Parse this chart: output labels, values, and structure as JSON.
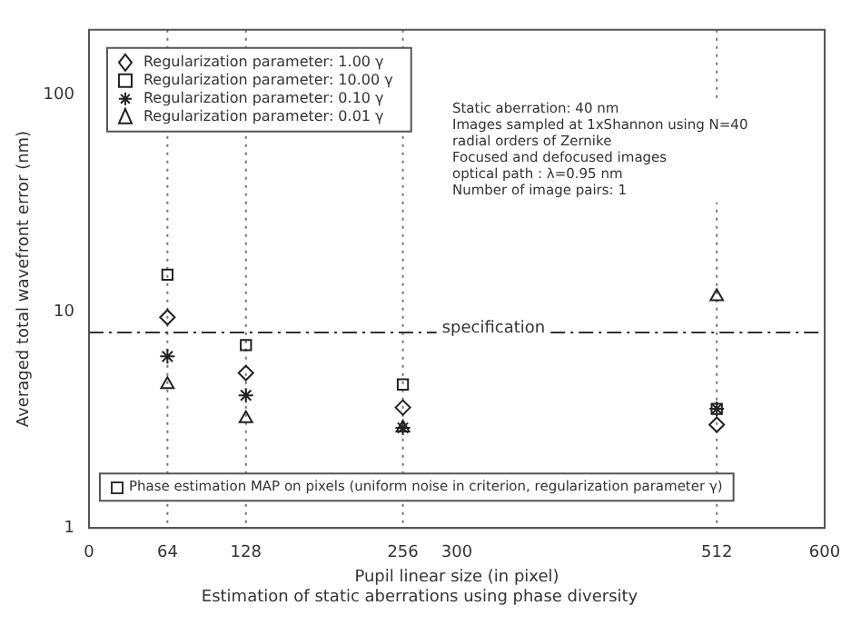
{
  "chart_data": {
    "type": "scatter",
    "title": "Estimation of static aberrations using phase diversity",
    "xlabel": "Pupil linear size (in pixel)",
    "ylabel": "Averaged total wavefront error (nm)",
    "x": [
      64,
      128,
      256,
      512
    ],
    "series": [
      {
        "name": "Regularization parameter: 1.00 γ",
        "color": "#222222",
        "marker": "diamond",
        "values": [
          9.4,
          5.2,
          3.6,
          3.0
        ]
      },
      {
        "name": "Regularization parameter: 10.00 γ",
        "color": "#222222",
        "marker": "square",
        "values": [
          14.8,
          7.0,
          4.6,
          3.55
        ]
      },
      {
        "name": "Regularization parameter: 0.10 γ",
        "color": "#222222",
        "marker": "cross",
        "values": [
          6.2,
          4.1,
          2.9,
          3.55
        ]
      },
      {
        "name": "Regularization parameter: 0.01 γ",
        "color": "#222222",
        "marker": "triangle",
        "values": [
          4.6,
          3.2,
          2.9,
          11.7
        ]
      }
    ],
    "xlim": [
      0,
      600
    ],
    "xticks": [
      0,
      64,
      128,
      256,
      300,
      512,
      600
    ],
    "log": "y",
    "ylim": [
      1,
      200
    ],
    "yticks": [
      1,
      10,
      100
    ],
    "grid": false,
    "legend": "top left",
    "ref_lines": [
      {
        "axis": "x",
        "value": 64,
        "line_style": "dotted",
        "color": "#777777"
      },
      {
        "axis": "x",
        "value": 128,
        "line_style": "dotted",
        "color": "#777777"
      },
      {
        "axis": "x",
        "value": 256,
        "line_style": "dotted",
        "color": "#777777"
      },
      {
        "axis": "x",
        "value": 512,
        "line_style": "dotted",
        "color": "#777777"
      },
      {
        "axis": "y",
        "value": 8,
        "label": "specification",
        "line_style": "dashdot",
        "color": "#333333"
      }
    ],
    "annotations": [
      "Static aberration: 40 nm\nImages sampled at 1xShannon using N=40\nradial orders of Zernike\nFocused and defocused images\noptical path : λ=0.95 nm\nNumber of image pairs: 1",
      "Phase estimation MAP on pixels (uniform noise in criterion, regularization parameter γ)"
    ]
  }
}
